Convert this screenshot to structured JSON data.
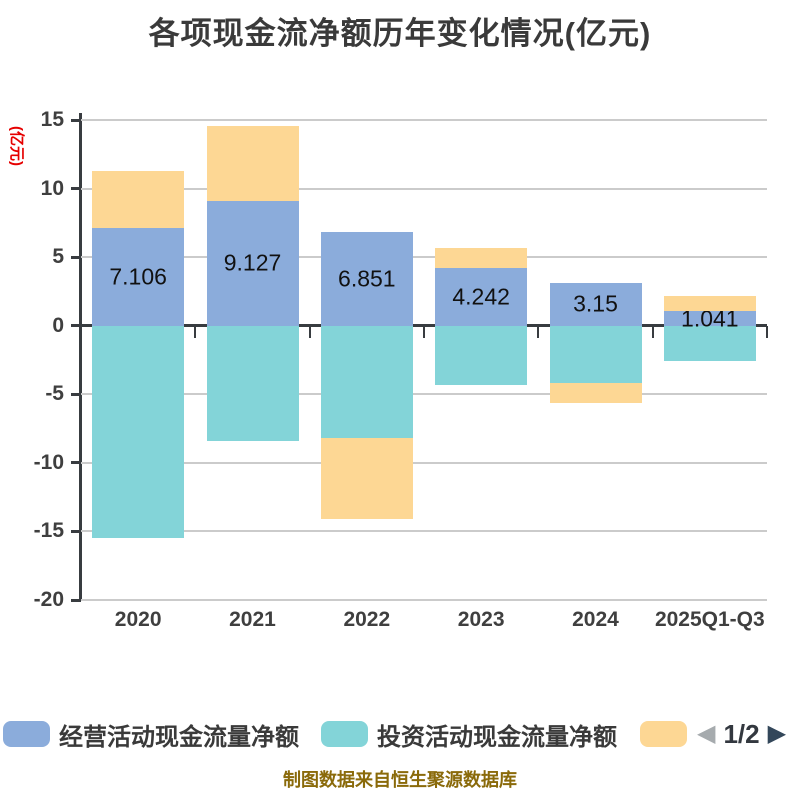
{
  "title": "各项现金流净额历年变化情况(亿元)",
  "chart_data": {
    "type": "bar",
    "stacked": true,
    "title": "各项现金流净额历年变化情况(亿元)",
    "ylabel": "(亿元)",
    "ylim": [
      -20,
      15
    ],
    "yticks": [
      15,
      10,
      5,
      0,
      -5,
      -10,
      -15,
      -20
    ],
    "grid": true,
    "legend_position": "bottom",
    "categories": [
      "2020",
      "2021",
      "2022",
      "2023",
      "2024",
      "2025Q1-Q3"
    ],
    "series": [
      {
        "name": "经营活动现金流量净额",
        "color": "#8BACDB",
        "values": [
          7.106,
          9.127,
          6.851,
          4.242,
          3.15,
          1.041
        ],
        "data_labels": [
          "7.106",
          "9.127",
          "6.851",
          "4.242",
          "3.15",
          "1.041"
        ]
      },
      {
        "name": "投资活动现金流量净额",
        "color": "#83D4D8",
        "values": [
          -15.5,
          -8.4,
          -8.2,
          -4.3,
          -4.2,
          -2.6
        ]
      },
      {
        "name": "",
        "color": "#FDD794",
        "values": [
          4.2,
          5.4,
          -5.9,
          1.4,
          -1.4,
          1.1
        ]
      }
    ]
  },
  "legend": {
    "items": [
      {
        "label": "经营活动现金流量净额",
        "color": "#8BACDB"
      },
      {
        "label": "投资活动现金流量净额",
        "color": "#83D4D8"
      },
      {
        "label": "",
        "color": "#FDD794"
      }
    ],
    "pagination": {
      "page": "1/2"
    }
  },
  "icons": {
    "prev": "◀",
    "next": "▶"
  },
  "source_note": "制图数据来自恒生聚源数据库",
  "colors": {
    "operating": "#8BACDB",
    "investing": "#83D4D8",
    "financing": "#FDD794",
    "title_text": "#3A3A3A",
    "axis_text": "#3F3F3F",
    "axis_line": "#383C40",
    "gridline": "#CBCBCB",
    "y_axis_title": "#E60000",
    "bar_label_text": "#111111",
    "source_text": "#8A6A0A",
    "pagination_text": "#33383F",
    "prev_arrow": "#A6ABAE",
    "next_arrow": "#33475A"
  }
}
